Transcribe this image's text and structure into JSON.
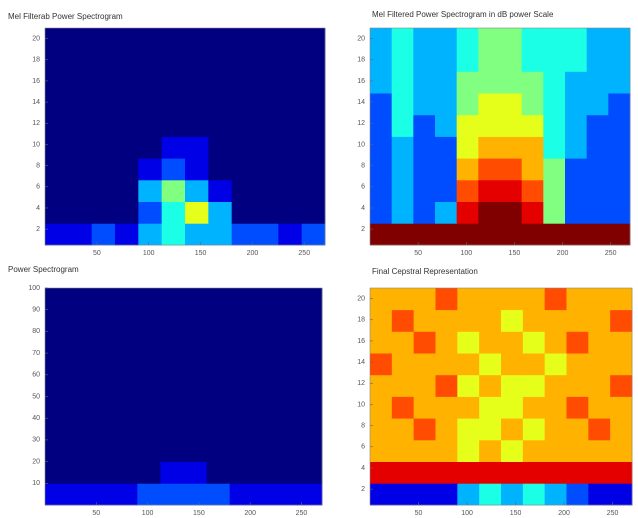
{
  "chart_data": [
    {
      "type": "heatmap",
      "title": "Mel Filterab Power Spectrogram",
      "colormap": "jet",
      "zlim": [
        0,
        10
      ],
      "xlim": [
        0,
        270
      ],
      "ylim": [
        0.5,
        21
      ],
      "xticks": [
        50,
        100,
        150,
        200,
        250
      ],
      "yticks": [
        2,
        4,
        6,
        8,
        10,
        12,
        14,
        16,
        18,
        20
      ],
      "z": [
        [
          1,
          1,
          2,
          1,
          3,
          4,
          3,
          3,
          2,
          2,
          1,
          2
        ],
        [
          0,
          0,
          0,
          0,
          2,
          4,
          6,
          3,
          0,
          0,
          0,
          0
        ],
        [
          0,
          0,
          0,
          0,
          3,
          5,
          3,
          1,
          0,
          0,
          0,
          0
        ],
        [
          0,
          0,
          0,
          0,
          1,
          2,
          1,
          0,
          0,
          0,
          0,
          0
        ],
        [
          0,
          0,
          0,
          0,
          0,
          1,
          1,
          0,
          0,
          0,
          0,
          0
        ],
        [
          0,
          0,
          0,
          0,
          0,
          0,
          0,
          0,
          0,
          0,
          0,
          0
        ],
        [
          0,
          0,
          0,
          0,
          0,
          0,
          0,
          0,
          0,
          0,
          0,
          0
        ],
        [
          0,
          0,
          0,
          0,
          0,
          0,
          0,
          0,
          0,
          0,
          0,
          0
        ],
        [
          0,
          0,
          0,
          0,
          0,
          0,
          0,
          0,
          0,
          0,
          0,
          0
        ],
        [
          0,
          0,
          0,
          0,
          0,
          0,
          0,
          0,
          0,
          0,
          0,
          0
        ]
      ]
    },
    {
      "type": "heatmap",
      "title": "Mel Filtered Power Spectrogram in dB power Scale",
      "colormap": "jet",
      "zlim": [
        0,
        10
      ],
      "xlim": [
        0,
        270
      ],
      "ylim": [
        0.5,
        21
      ],
      "xticks": [
        50,
        100,
        150,
        200,
        250
      ],
      "yticks": [
        2,
        4,
        6,
        8,
        10,
        12,
        14,
        16,
        18,
        20
      ],
      "z": [
        [
          10,
          10,
          10,
          10,
          10,
          10,
          10,
          10,
          10,
          10,
          10,
          10
        ],
        [
          2,
          3,
          2,
          3,
          9,
          10,
          10,
          9,
          5,
          2,
          2,
          2
        ],
        [
          2,
          3,
          2,
          2,
          8,
          9,
          9,
          8,
          5,
          2,
          2,
          2
        ],
        [
          2,
          3,
          2,
          2,
          7,
          8,
          8,
          7,
          5,
          2,
          2,
          2
        ],
        [
          2,
          3,
          2,
          2,
          6,
          7,
          7,
          7,
          4,
          3,
          2,
          2
        ],
        [
          2,
          4,
          2,
          3,
          6,
          6,
          6,
          6,
          4,
          3,
          2,
          2
        ],
        [
          2,
          4,
          3,
          3,
          5,
          6,
          6,
          5,
          4,
          3,
          3,
          2
        ],
        [
          3,
          4,
          3,
          3,
          5,
          5,
          5,
          5,
          4,
          3,
          3,
          3
        ],
        [
          3,
          4,
          3,
          3,
          4,
          5,
          5,
          4,
          4,
          4,
          3,
          3
        ],
        [
          3,
          4,
          3,
          3,
          4,
          5,
          5,
          4,
          4,
          4,
          3,
          3
        ]
      ]
    },
    {
      "type": "heatmap",
      "title": "Power Spectrogram",
      "colormap": "jet",
      "zlim": [
        0,
        10
      ],
      "xlim": [
        0,
        270
      ],
      "ylim": [
        0,
        100
      ],
      "xticks": [
        50,
        100,
        150,
        200,
        250
      ],
      "yticks": [
        10,
        20,
        30,
        40,
        50,
        60,
        70,
        80,
        90,
        100
      ],
      "z": [
        [
          1,
          1,
          1,
          1,
          2,
          2,
          2,
          2,
          1,
          1,
          1,
          1
        ],
        [
          0,
          0,
          0,
          0,
          0,
          1,
          1,
          0,
          0,
          0,
          0,
          0
        ],
        [
          0,
          0,
          0,
          0,
          0,
          0,
          0,
          0,
          0,
          0,
          0,
          0
        ],
        [
          0,
          0,
          0,
          0,
          0,
          0,
          0,
          0,
          0,
          0,
          0,
          0
        ],
        [
          0,
          0,
          0,
          0,
          0,
          0,
          0,
          0,
          0,
          0,
          0,
          0
        ],
        [
          0,
          0,
          0,
          0,
          0,
          0,
          0,
          0,
          0,
          0,
          0,
          0
        ],
        [
          0,
          0,
          0,
          0,
          0,
          0,
          0,
          0,
          0,
          0,
          0,
          0
        ],
        [
          0,
          0,
          0,
          0,
          0,
          0,
          0,
          0,
          0,
          0,
          0,
          0
        ],
        [
          0,
          0,
          0,
          0,
          0,
          0,
          0,
          0,
          0,
          0,
          0,
          0
        ],
        [
          0,
          0,
          0,
          0,
          0,
          0,
          0,
          0,
          0,
          0,
          0,
          0
        ]
      ]
    },
    {
      "type": "heatmap",
      "title": "Final Cepstral Representation",
      "colormap": "jet",
      "zlim": [
        0,
        10
      ],
      "xlim": [
        0,
        270
      ],
      "ylim": [
        0.5,
        21
      ],
      "xticks": [
        50,
        100,
        150,
        200,
        250
      ],
      "yticks": [
        2,
        4,
        6,
        8,
        10,
        12,
        14,
        16,
        18,
        20
      ],
      "z": [
        [
          1,
          1,
          1,
          1,
          3,
          4,
          3,
          4,
          3,
          2,
          1,
          1
        ],
        [
          9,
          9,
          9,
          9,
          9,
          9,
          9,
          9,
          9,
          9,
          9,
          9
        ],
        [
          7,
          7,
          7,
          7,
          6,
          7,
          6,
          7,
          7,
          7,
          7,
          7
        ],
        [
          7,
          7,
          8,
          7,
          6,
          6,
          7,
          6,
          7,
          7,
          8,
          7
        ],
        [
          7,
          8,
          7,
          7,
          7,
          6,
          6,
          7,
          7,
          8,
          7,
          7
        ],
        [
          7,
          7,
          7,
          8,
          6,
          7,
          6,
          6,
          7,
          7,
          7,
          8
        ],
        [
          8,
          7,
          7,
          7,
          7,
          6,
          7,
          7,
          6,
          7,
          7,
          7
        ],
        [
          7,
          7,
          8,
          7,
          6,
          7,
          7,
          6,
          7,
          8,
          7,
          7
        ],
        [
          7,
          8,
          7,
          7,
          7,
          7,
          6,
          7,
          7,
          7,
          7,
          8
        ],
        [
          7,
          7,
          7,
          8,
          7,
          7,
          7,
          7,
          8,
          7,
          7,
          7
        ]
      ]
    }
  ]
}
